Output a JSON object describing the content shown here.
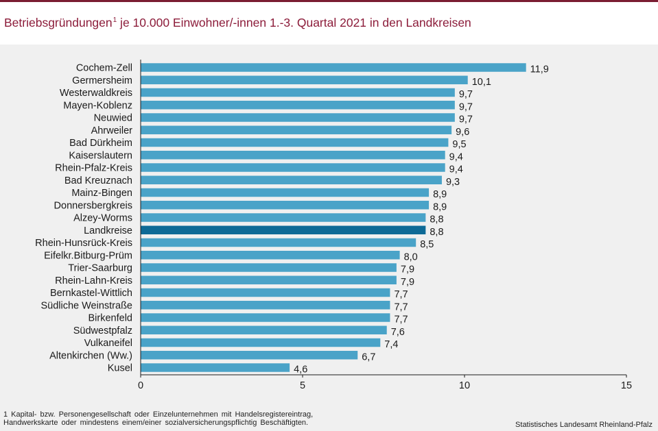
{
  "header": {
    "title_main": "Betriebsgründungen",
    "title_sup": "1",
    "title_rest": " je 10.000 Einwohner/-innen 1.-3. Quartal 2021  in den Landkreisen"
  },
  "colors": {
    "bar": "#4aa3c8",
    "bar_highlight": "#0e6a96",
    "title": "#8c1c3a",
    "panel": "#f0f0f0"
  },
  "chart_data": {
    "type": "bar",
    "orientation": "horizontal",
    "title": "Betriebsgründungen je 10.000 Einwohner/-innen 1.-3. Quartal 2021 in den Landkreisen",
    "categories": [
      "Cochem-Zell",
      "Germersheim",
      "Westerwaldkreis",
      "Mayen-Koblenz",
      "Neuwied",
      "Ahrweiler",
      "Bad Dürkheim",
      "Kaiserslautern",
      "Rhein-Pfalz-Kreis",
      "Bad Kreuznach",
      "Mainz-Bingen",
      "Donnersbergkreis",
      "Alzey-Worms",
      "Landkreise",
      "Rhein-Hunsrück-Kreis",
      "Eifelkr.Bitburg-Prüm",
      "Trier-Saarburg",
      "Rhein-Lahn-Kreis",
      "Bernkastel-Wittlich",
      "Südliche Weinstraße",
      "Birkenfeld",
      "Südwestpfalz",
      "Vulkaneifel",
      "Altenkirchen (Ww.)",
      "Kusel"
    ],
    "values": [
      11.9,
      10.1,
      9.7,
      9.7,
      9.7,
      9.6,
      9.5,
      9.4,
      9.4,
      9.3,
      8.9,
      8.9,
      8.8,
      8.8,
      8.5,
      8.0,
      7.9,
      7.9,
      7.7,
      7.7,
      7.7,
      7.6,
      7.4,
      6.7,
      4.6
    ],
    "value_labels": [
      "11,9",
      "10,1",
      "9,7",
      "9,7",
      "9,7",
      "9,6",
      "9,5",
      "9,4",
      "9,4",
      "9,3",
      "8,9",
      "8,9",
      "8,8",
      "8,8",
      "8,5",
      "8,0",
      "7,9",
      "7,9",
      "7,7",
      "7,7",
      "7,7",
      "7,6",
      "7,4",
      "6,7",
      "4,6"
    ],
    "highlight": "Landkreise",
    "xlim": [
      0,
      15
    ],
    "xticks": [
      0,
      5,
      10,
      15
    ],
    "xtick_labels": [
      "0",
      "5",
      "10",
      "15"
    ],
    "xlabel": "",
    "ylabel": "",
    "grid": false
  },
  "footnote": {
    "line1": "1 Kapital- bzw. Personengesellschaft oder Einzelunternehmen mit Handelsregistereintrag,",
    "line2": "Handwerkskarte oder mindestens einem/einer sozialversicherungspflichtig Beschäftigten."
  },
  "source": "Statistisches Landesamt Rheinland-Pfalz"
}
